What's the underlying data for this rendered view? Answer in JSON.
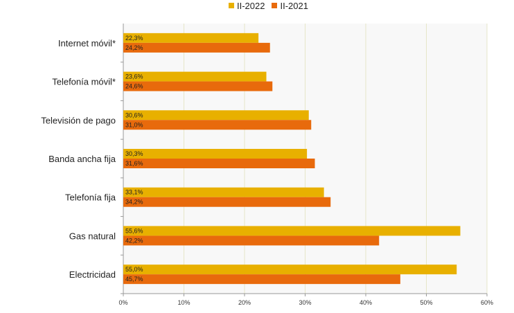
{
  "chart_data": {
    "type": "bar",
    "orientation": "horizontal",
    "categories": [
      "Internet móvil*",
      "Telefonía móvil*",
      "Televisión de pago",
      "Banda ancha fija",
      "Telefonía fija",
      "Gas natural",
      "Electricidad"
    ],
    "series": [
      {
        "name": "II-2022",
        "color": "#e8b000",
        "values": [
          22.3,
          23.6,
          30.6,
          30.3,
          33.1,
          55.6,
          55.0
        ],
        "labels": [
          "22,3%",
          "23,6%",
          "30,6%",
          "30,3%",
          "33,1%",
          "55,6%",
          "55,0%"
        ]
      },
      {
        "name": "II-2021",
        "color": "#e86a0c",
        "values": [
          24.2,
          24.6,
          31.0,
          31.6,
          34.2,
          42.2,
          45.7
        ],
        "labels": [
          "24,2%",
          "24,6%",
          "31,0%",
          "31,6%",
          "34,2%",
          "42,2%",
          "45,7%"
        ]
      }
    ],
    "xlim": [
      0,
      60
    ],
    "xticks": [
      0,
      10,
      20,
      30,
      40,
      50,
      60
    ],
    "xtick_labels": [
      "0%",
      "10%",
      "20%",
      "30%",
      "40%",
      "50%",
      "60%"
    ],
    "grid": true,
    "legend_position": "top-center",
    "title": "",
    "xlabel": "",
    "ylabel": ""
  }
}
